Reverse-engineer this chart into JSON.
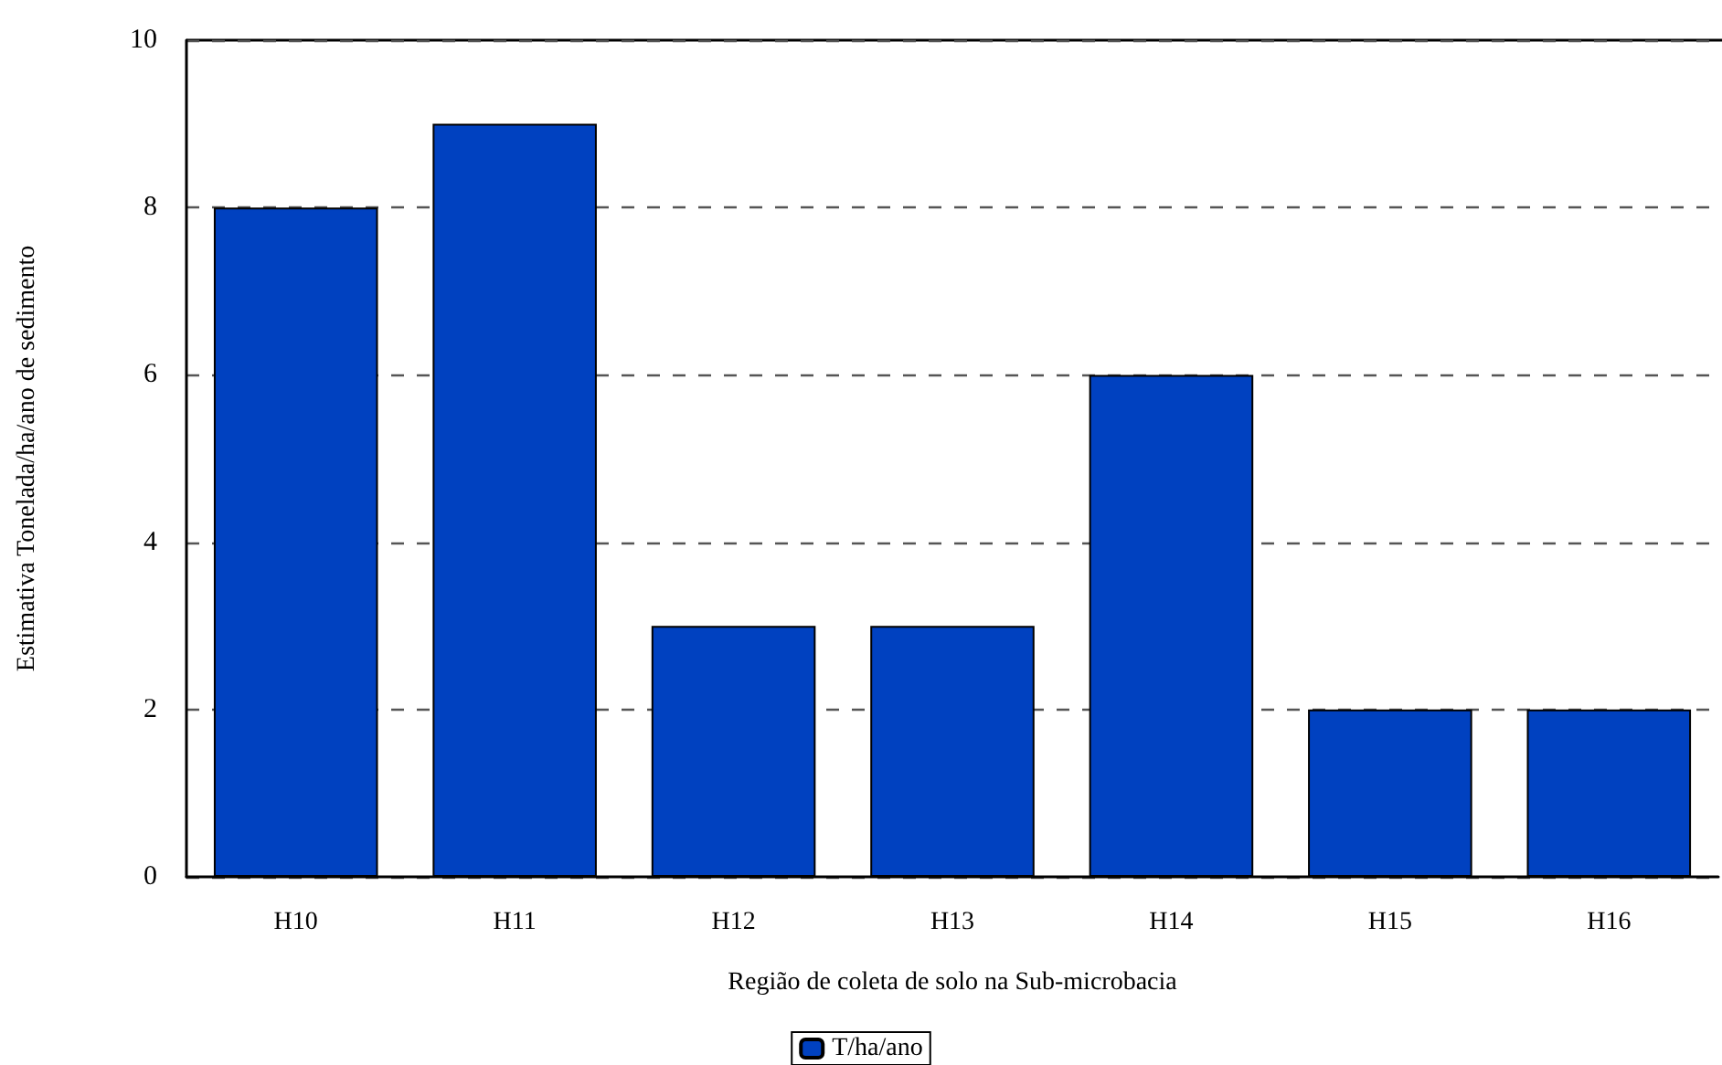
{
  "chart_data": {
    "type": "bar",
    "xlabel": "Região de coleta de solo na Sub-microbacia",
    "ylabel": "Estimativa Tonelada/ha/ano de sedimento",
    "categories": [
      "H10",
      "H11",
      "H12",
      "H13",
      "H14",
      "H15",
      "H16"
    ],
    "series": [
      {
        "name": "T/ha/ano",
        "color": "#0041c0",
        "values": [
          8,
          9,
          3,
          3,
          6,
          2,
          2
        ]
      }
    ],
    "ylim": [
      0,
      10
    ],
    "yticks": [
      0,
      2,
      4,
      6,
      8,
      10
    ],
    "grid": "y",
    "legend": "bottom"
  }
}
